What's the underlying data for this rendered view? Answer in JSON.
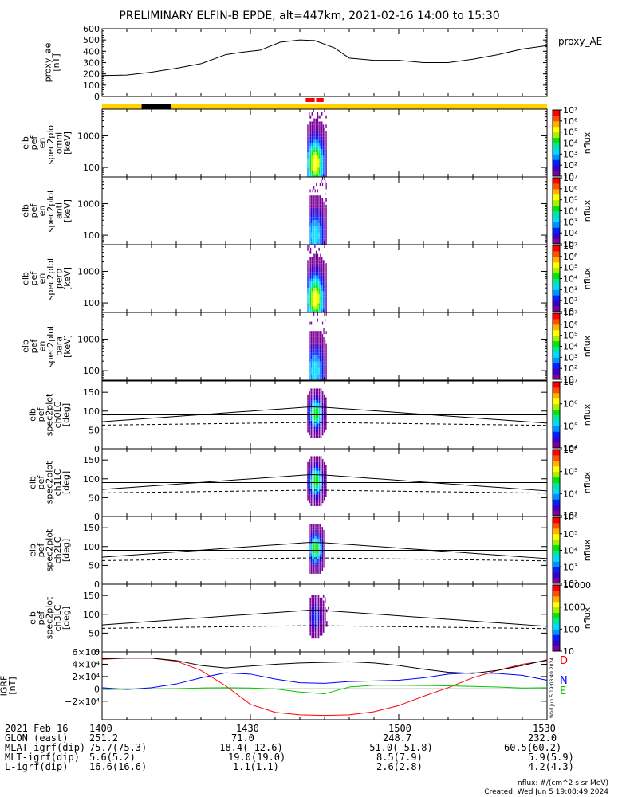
{
  "title": "PRELIMINARY ELFIN-B EPDE, alt=447km, 2021-02-16 14:00 to 15:30",
  "colors": {
    "sunlit_bar": "#ffd200",
    "shadow_bar": "#000000",
    "science_bar": "#ff0000",
    "north": "#0000ff",
    "east": "#00c800",
    "down": "#ff0000",
    "total": "#000000"
  },
  "chart_data": [
    {
      "name": "proxy_AE",
      "type": "line",
      "ylabel": "proxy_ae\n[nT]",
      "legend": "proxy_AE",
      "ylim": [
        0,
        600
      ],
      "yticks": [
        "0",
        "100",
        "200",
        "300",
        "400",
        "500",
        "600"
      ],
      "x": [
        0,
        5,
        10,
        15,
        20,
        25,
        28,
        32,
        36,
        40,
        43,
        47,
        50,
        55,
        60,
        65,
        70,
        75,
        80,
        85,
        90
      ],
      "y": [
        185,
        190,
        215,
        250,
        290,
        370,
        390,
        410,
        480,
        500,
        495,
        430,
        340,
        320,
        320,
        300,
        300,
        330,
        370,
        420,
        450
      ]
    },
    {
      "type": "status_bars",
      "sunlit": [
        [
          0,
          90
        ]
      ],
      "shadow": [
        [
          8,
          14
        ]
      ],
      "science": [
        [
          41.2,
          44.8
        ]
      ],
      "science_gap": [
        [
          43.0,
          43.3
        ]
      ]
    },
    {
      "name": "omni",
      "type": "heatmap",
      "ylabel": "elb\npef\nen\nspec2plot\nomni\n[keV]",
      "ylim_keV": [
        50,
        7000
      ],
      "yticks": [
        "100",
        "1000"
      ],
      "zlabel": "nflux",
      "zticks": [
        "10",
        "10²",
        "10³",
        "10⁴",
        "10⁵",
        "10⁶",
        "10⁷"
      ],
      "x_range": [
        41.5,
        45.5
      ],
      "peak_x": 43.0,
      "peak_keV": 120
    },
    {
      "name": "anti",
      "type": "heatmap",
      "ylabel": "elb\npef\nen\nspec2plot\nanti\n[keV]",
      "ylim_keV": [
        50,
        7000
      ],
      "yticks": [
        "100",
        "1000"
      ],
      "zlabel": "nflux",
      "zticks": [
        "10",
        "10²",
        "10³",
        "10⁴",
        "10⁵",
        "10⁶",
        "10⁷"
      ],
      "x_range": [
        42.0,
        45.5
      ],
      "peak_x": 43.0,
      "peak_keV": 90
    },
    {
      "name": "perp",
      "type": "heatmap",
      "ylabel": "elb\npef\nen\nspec2plot\nperp\n[keV]",
      "ylim_keV": [
        50,
        7000
      ],
      "yticks": [
        "100",
        "1000"
      ],
      "zlabel": "nflux",
      "zticks": [
        "10",
        "10²",
        "10³",
        "10⁴",
        "10⁵",
        "10⁶",
        "10⁷"
      ],
      "x_range": [
        41.5,
        45.5
      ],
      "peak_x": 43.0,
      "peak_keV": 120
    },
    {
      "name": "para",
      "type": "heatmap",
      "ylabel": "elb\npef\nen\nspec2plot\npara\n[keV]",
      "ylim_keV": [
        50,
        7000
      ],
      "yticks": [
        "100",
        "1000"
      ],
      "zlabel": "nflux",
      "zticks": [
        "10",
        "10²",
        "10³",
        "10⁴",
        "10⁵",
        "10⁶",
        "10⁷"
      ],
      "x_range": [
        42.0,
        45.5
      ],
      "peak_x": 43.0,
      "peak_keV": 90
    },
    {
      "name": "ch0LC",
      "type": "heatmap",
      "ylabel": "elb\npef\nspec2plot\nch0LC\n[deg]",
      "ylim": [
        0,
        180
      ],
      "yticks": [
        "0",
        "50",
        "100",
        "150"
      ],
      "zlabel": "nflux",
      "zticks": [
        "10⁴",
        "10⁵",
        "10⁶",
        "10⁷"
      ],
      "x_range": [
        41.5,
        45.5
      ],
      "pa_center": 90
    },
    {
      "name": "ch1LC",
      "type": "heatmap",
      "ylabel": "elb\npef\nspec2plot\nch1LC\n[deg]",
      "ylim": [
        0,
        180
      ],
      "yticks": [
        "0",
        "50",
        "100",
        "150"
      ],
      "zlabel": "nflux",
      "zticks": [
        "10³",
        "10⁴",
        "10⁵",
        "10⁶"
      ],
      "x_range": [
        41.5,
        45.5
      ],
      "pa_center": 90
    },
    {
      "name": "ch2LC",
      "type": "heatmap",
      "ylabel": "elb\npef\nspec2plot\nch2LC\n[deg]",
      "ylim": [
        0,
        180
      ],
      "yticks": [
        "0",
        "50",
        "100",
        "150"
      ],
      "zlabel": "nflux",
      "zticks": [
        "10²",
        "10³",
        "10⁴",
        "10⁵",
        "10⁶"
      ],
      "x_range": [
        42.0,
        45.0
      ],
      "pa_center": 90
    },
    {
      "name": "ch3LC",
      "type": "heatmap",
      "ylabel": "elb\npef\nspec2plot\nch3LC\n[deg]",
      "ylim": [
        0,
        180
      ],
      "yticks": [
        "0",
        "50",
        "100",
        "150"
      ],
      "zlabel": "nflux",
      "zticks": [
        "10",
        "100",
        "1000",
        "10000"
      ],
      "x_range": [
        42.0,
        46.0
      ],
      "pa_center": 90
    },
    {
      "name": "IGRF",
      "type": "line",
      "ylabel": "IGRF\n[nT]",
      "ylim": [
        -50000,
        60000
      ],
      "yticks": [
        "−2×10⁴",
        "0",
        "2×10⁴",
        "4×10⁴",
        "6×10⁴"
      ],
      "x": [
        0,
        5,
        10,
        15,
        20,
        25,
        30,
        35,
        40,
        45,
        50,
        55,
        60,
        65,
        70,
        75,
        80,
        85,
        90
      ],
      "series": [
        {
          "name": "D",
          "color": "#ff0000",
          "values": [
            48000,
            50000,
            50000,
            45000,
            30000,
            5000,
            -25000,
            -38000,
            -42000,
            -43000,
            -42000,
            -37000,
            -27000,
            -12000,
            2000,
            18000,
            30000,
            40000,
            46000
          ]
        },
        {
          "name": "N",
          "color": "#0000ff",
          "values": [
            2000,
            -1000,
            2000,
            8000,
            18000,
            26000,
            24000,
            16000,
            10000,
            9000,
            12000,
            13000,
            14000,
            18000,
            24000,
            26000,
            25000,
            22000,
            14000
          ]
        },
        {
          "name": "E",
          "color": "#00c800",
          "values": [
            -1000,
            -500,
            0,
            500,
            1500,
            2000,
            1500,
            0,
            -5000,
            -8000,
            3000,
            6000,
            6000,
            5500,
            5000,
            4000,
            3000,
            1500,
            2000
          ]
        },
        {
          "name": "",
          "color": "#000000",
          "values": [
            49000,
            50000,
            50000,
            46000,
            38000,
            34000,
            37000,
            40000,
            42000,
            43000,
            44000,
            42000,
            38000,
            32000,
            27000,
            25000,
            30000,
            38000,
            47000
          ]
        }
      ],
      "timestamp": "Wed Jun  5 19:08:49 2024"
    }
  ],
  "footer": {
    "rows": [
      {
        "label": "2021 Feb 16",
        "values": [
          "1400",
          "1430",
          "1500",
          "1530"
        ]
      },
      {
        "label": "GLON (east)",
        "values": [
          "251.2",
          "71.0",
          "248.7",
          "232.0"
        ]
      },
      {
        "label": "MLAT-igrf(dip)",
        "values": [
          "75.7(75.3)",
          "-18.4(-12.6)",
          "-51.0(-51.8)",
          "60.5(60.2)"
        ]
      },
      {
        "label": "MLT-igrf(dip)",
        "values": [
          "5.6(5.2)",
          "19.0(19.0)",
          "8.5(7.9)",
          "5.9(5.9)"
        ]
      },
      {
        "label": "L-igrf(dip)",
        "values": [
          "16.6(16.6)",
          "1.1(1.1)",
          "2.6(2.8)",
          "4.2(4.3)"
        ]
      }
    ],
    "units": "nflux: #/(cm^2 s sr MeV)",
    "created": "Created: Wed Jun  5 19:08:49 2024"
  }
}
